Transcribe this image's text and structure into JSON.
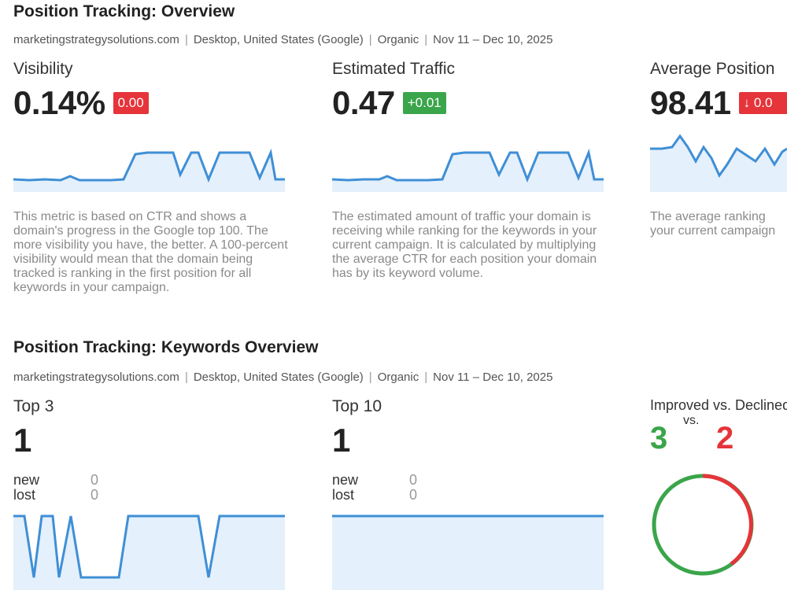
{
  "overview": {
    "title": "Position Tracking: Overview",
    "meta": [
      "marketingstrategysolutions.com",
      "Desktop, United States (Google)",
      "Organic",
      "Nov 11 – Dec 10, 2025"
    ],
    "cards": [
      {
        "label": "Visibility",
        "value": "0.14%",
        "delta": "0.00",
        "description": "This metric is based on CTR and shows a domain's progress in the Google top 100. The more visibility you have, the better. A 100-percent visibility would mean that the domain being tracked is ranking in the first position for all keywords in your campaign."
      },
      {
        "label": "Estimated Traffic",
        "value": "0.47",
        "delta": "+0.01",
        "description": "The estimated amount of traffic your domain is receiving while ranking for the keywords in your current campaign. It is calculated by multiplying the average CTR for each position your domain has by its keyword volume."
      },
      {
        "label": "Average Position",
        "value": "98.41",
        "delta": "↓ 0.0",
        "description": "The average ranking your current campaign"
      }
    ]
  },
  "keywords": {
    "title": "Position Tracking: Keywords Overview",
    "meta": [
      "marketingstrategysolutions.com",
      "Desktop, United States (Google)",
      "Organic",
      "Nov 11 – Dec 10, 2025"
    ],
    "top3": {
      "label": "Top 3",
      "value": "1",
      "new_label": "new",
      "new_value": "0",
      "lost_label": "lost",
      "lost_value": "0"
    },
    "top10": {
      "label": "Top 10",
      "value": "1",
      "new_label": "new",
      "new_value": "0",
      "lost_label": "lost",
      "lost_value": "0"
    },
    "improved_declined": {
      "label": "Improved vs. Declined",
      "vs": "vs.",
      "improved": "3",
      "declined": "2"
    }
  },
  "colors": {
    "line": "#3f8fd6",
    "fill": "#e4f0fb",
    "red": "#e5343a",
    "green": "#3aa54a"
  }
}
